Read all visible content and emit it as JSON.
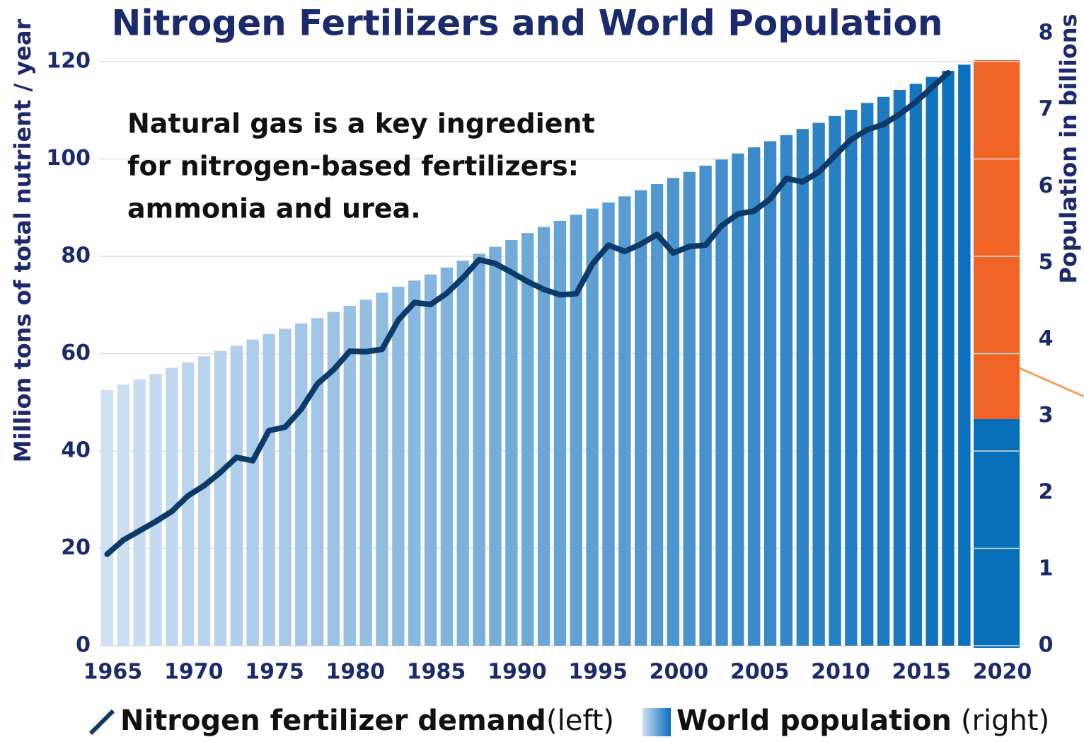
{
  "chart_data": {
    "type": "bar-line",
    "title": "Nitrogen Fertilizers and World Population",
    "annotation": [
      "Natural gas is a key ingredient",
      "for nitrogen-based fertilizers:",
      "ammonia and urea."
    ],
    "ylabel": "Million tons of total nutrient / year",
    "y2label": "Population in billions",
    "x": [
      1965,
      1966,
      1967,
      1968,
      1969,
      1970,
      1971,
      1972,
      1973,
      1974,
      1975,
      1976,
      1977,
      1978,
      1979,
      1980,
      1981,
      1982,
      1983,
      1984,
      1985,
      1986,
      1987,
      1988,
      1989,
      1990,
      1991,
      1992,
      1993,
      1994,
      1995,
      1996,
      1997,
      1998,
      1999,
      2000,
      2001,
      2002,
      2003,
      2004,
      2005,
      2006,
      2007,
      2008,
      2009,
      2010,
      2011,
      2012,
      2013,
      2014,
      2015,
      2016,
      2017,
      2018
    ],
    "xlim": [
      1964.5,
      2020.5
    ],
    "xticks": [
      1965,
      1970,
      1975,
      1980,
      1985,
      1990,
      1995,
      2000,
      2005,
      2010,
      2015,
      2020
    ],
    "ylim": [
      0,
      120
    ],
    "yticks": [
      0,
      20,
      40,
      60,
      80,
      100,
      120
    ],
    "y2lim": [
      0,
      8
    ],
    "y2ticks": [
      0,
      1,
      2,
      3,
      4,
      5,
      6,
      7,
      8
    ],
    "grid": true,
    "series": [
      {
        "name": "Nitrogen fertilizer demand",
        "legend_suffix": "(left)",
        "type": "line",
        "axis": "y",
        "color": "#0e3a6a",
        "values": [
          18.8,
          21.7,
          23.6,
          25.5,
          27.6,
          30.8,
          32.9,
          35.6,
          38.7,
          38.0,
          44.2,
          44.9,
          48.6,
          53.8,
          56.7,
          60.5,
          60.4,
          60.9,
          66.9,
          70.5,
          70.1,
          72.4,
          75.6,
          79.3,
          78.5,
          76.7,
          74.8,
          73.2,
          72.1,
          72.3,
          78.4,
          82.3,
          81.0,
          82.5,
          84.5,
          80.7,
          82.0,
          82.3,
          86.3,
          88.7,
          89.3,
          91.8,
          96.0,
          95.3,
          97.3,
          100.7,
          104.0,
          106.0,
          107.1,
          109.2,
          111.7,
          114.7,
          117.7,
          null
        ]
      },
      {
        "name": "World population",
        "legend_suffix": "(right)",
        "type": "bar",
        "axis": "y2",
        "color": [
          "#cfe0f3",
          "#0a6fbc"
        ],
        "values": [
          3.34,
          3.41,
          3.48,
          3.55,
          3.63,
          3.7,
          3.78,
          3.85,
          3.92,
          4.0,
          4.07,
          4.14,
          4.21,
          4.28,
          4.36,
          4.44,
          4.52,
          4.61,
          4.69,
          4.77,
          4.85,
          4.94,
          5.03,
          5.12,
          5.21,
          5.3,
          5.39,
          5.47,
          5.55,
          5.63,
          5.71,
          5.79,
          5.87,
          5.95,
          6.03,
          6.11,
          6.19,
          6.27,
          6.35,
          6.43,
          6.51,
          6.59,
          6.67,
          6.75,
          6.83,
          6.92,
          7.0,
          7.09,
          7.17,
          7.26,
          7.34,
          7.43,
          7.51,
          7.59
        ]
      }
    ]
  }
}
